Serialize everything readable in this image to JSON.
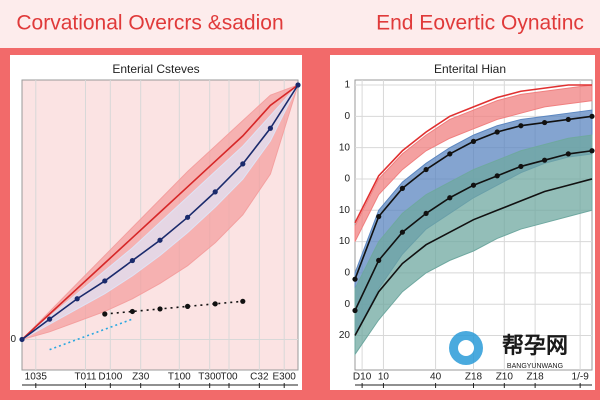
{
  "header": {
    "left": "Corvational Overcrs &sadion",
    "right": "End Eovertic Oynatinc"
  },
  "watermark": {
    "text": "帮孕网",
    "sub": "BANGYUNWANG"
  },
  "chart_data": [
    {
      "type": "line",
      "title": "Enterial Csteves",
      "x": [
        0,
        1,
        2,
        3,
        4,
        5,
        6,
        7,
        8,
        9,
        10
      ],
      "xlim": [
        0,
        10
      ],
      "ylim": [
        -1.2,
        10
      ],
      "grid": true,
      "xticks": [
        {
          "value": 0.5,
          "label": "1035"
        },
        {
          "value": 2.3,
          "label": "T011"
        },
        {
          "value": 3.2,
          "label": "D100"
        },
        {
          "value": 4.3,
          "label": "Z30"
        },
        {
          "value": 5.7,
          "label": "T100"
        },
        {
          "value": 6.8,
          "label": "T300"
        },
        {
          "value": 7.5,
          "label": "T00"
        },
        {
          "value": 8.6,
          "label": "C32"
        },
        {
          "value": 9.5,
          "label": "E300"
        }
      ],
      "yticks": [
        0
      ],
      "bands": [
        {
          "color": "#f4a0a0",
          "lower": [
            0,
            0.3,
            0.7,
            1.1,
            1.6,
            2.2,
            2.9,
            3.8,
            4.9,
            6.5,
            10
          ],
          "upper": [
            0,
            1.1,
            2.2,
            3.3,
            4.4,
            5.5,
            6.6,
            7.6,
            8.6,
            9.6,
            10
          ]
        },
        {
          "color": "#dfe3f5",
          "lower": [
            0,
            0.6,
            1.2,
            1.8,
            2.5,
            3.3,
            4.2,
            5.2,
            6.3,
            7.8,
            10
          ],
          "upper": [
            0,
            0.9,
            1.8,
            2.7,
            3.6,
            4.6,
            5.6,
            6.6,
            7.6,
            8.8,
            10
          ]
        }
      ],
      "series": [
        {
          "color": "#d62728",
          "values": [
            0,
            1.0,
            2.0,
            3.0,
            4.0,
            5.0,
            6.0,
            7.0,
            8.0,
            9.2,
            10
          ]
        },
        {
          "color": "#1a2a6c",
          "marker": true,
          "values": [
            0,
            0.8,
            1.6,
            2.3,
            3.1,
            3.9,
            4.8,
            5.8,
            6.9,
            8.3,
            10
          ]
        },
        {
          "color": "#111111",
          "dash": "2,4",
          "marker": true,
          "values": [
            null,
            null,
            null,
            1.0,
            1.1,
            1.2,
            1.3,
            1.4,
            1.5,
            null,
            null
          ]
        },
        {
          "color": "#2aa7e0",
          "dash": "2,3",
          "values": [
            null,
            -0.4,
            0,
            0.4,
            0.8,
            null,
            null,
            null,
            null,
            null,
            null
          ]
        }
      ]
    },
    {
      "type": "line",
      "title": "Enterital Hian",
      "x": [
        0,
        1,
        2,
        3,
        4,
        5,
        6,
        7,
        8,
        9,
        10
      ],
      "xlim": [
        0,
        10
      ],
      "ylim": [
        -1.1,
        8
      ],
      "grid": true,
      "xticks": [
        {
          "value": 0.3,
          "label": "D10"
        },
        {
          "value": 1.2,
          "label": "10"
        },
        {
          "value": 3.4,
          "label": "40"
        },
        {
          "value": 5.0,
          "label": "Z18"
        },
        {
          "value": 6.3,
          "label": "Z10"
        },
        {
          "value": 7.6,
          "label": "Z18"
        },
        {
          "value": 9.5,
          "label": "1/-9"
        }
      ],
      "yticks": [
        {
          "value": 8,
          "label": "1"
        },
        {
          "value": 7,
          "label": "0"
        },
        {
          "value": 6,
          "label": "10"
        },
        {
          "value": 5,
          "label": "0"
        },
        {
          "value": 4,
          "label": "10"
        },
        {
          "value": 3,
          "label": "10"
        },
        {
          "value": 2,
          "label": "0"
        },
        {
          "value": 1,
          "label": "0"
        },
        {
          "value": 0,
          "label": "20"
        }
      ],
      "bands": [
        {
          "color": "#f08080",
          "lower": [
            3,
            4.5,
            5.3,
            5.9,
            6.3,
            6.6,
            6.9,
            7.1,
            7.3,
            7.4,
            7.5
          ],
          "upper": [
            3.5,
            5.0,
            5.8,
            6.4,
            6.9,
            7.2,
            7.5,
            7.7,
            7.8,
            7.9,
            8.0
          ]
        },
        {
          "color": "#5b86c0",
          "lower": [
            0,
            1.5,
            2.6,
            3.4,
            3.9,
            4.4,
            4.8,
            5.2,
            5.5,
            5.7,
            5.8
          ],
          "upper": [
            2,
            4.0,
            4.9,
            5.5,
            6.0,
            6.4,
            6.7,
            6.9,
            7.0,
            7.1,
            7.2
          ]
        },
        {
          "color": "#6fa8a0",
          "lower": [
            -0.6,
            0.5,
            1.4,
            2.0,
            2.4,
            2.7,
            3.1,
            3.4,
            3.6,
            3.8,
            4.0
          ],
          "upper": [
            1.5,
            3.0,
            3.9,
            4.5,
            4.9,
            5.3,
            5.6,
            5.9,
            6.1,
            6.3,
            6.4
          ]
        }
      ],
      "series": [
        {
          "color": "#e03030",
          "values": [
            3.6,
            5.1,
            5.9,
            6.5,
            7.0,
            7.3,
            7.6,
            7.8,
            7.9,
            8.0,
            8.0
          ]
        },
        {
          "color": "#111111",
          "marker": true,
          "values": [
            1.8,
            3.8,
            4.7,
            5.3,
            5.8,
            6.2,
            6.5,
            6.7,
            6.8,
            6.9,
            7.0
          ]
        },
        {
          "color": "#111111",
          "marker": true,
          "values": [
            0.8,
            2.4,
            3.3,
            3.9,
            4.4,
            4.8,
            5.1,
            5.4,
            5.6,
            5.8,
            5.9
          ]
        },
        {
          "color": "#111111",
          "values": [
            0,
            1.4,
            2.3,
            2.9,
            3.3,
            3.7,
            4.0,
            4.3,
            4.6,
            4.8,
            5.0
          ]
        }
      ]
    }
  ]
}
